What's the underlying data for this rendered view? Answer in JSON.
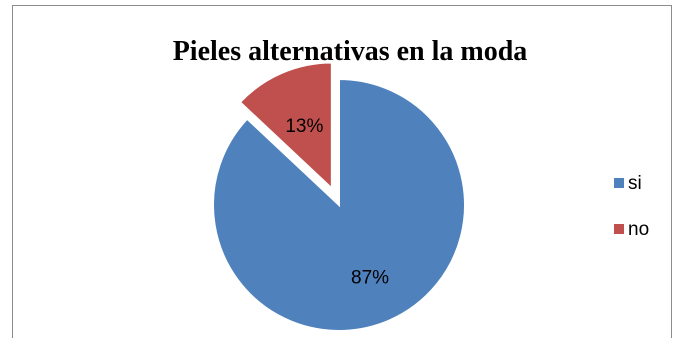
{
  "chart_data": {
    "type": "pie",
    "title": "Pieles alternativas en la moda",
    "categories": [
      "si",
      "no"
    ],
    "values": [
      87,
      13
    ],
    "data_labels": [
      "87%",
      "13%"
    ],
    "colors": [
      "#4F81BD",
      "#C0504D"
    ],
    "exploded": [
      false,
      true
    ],
    "legend": {
      "placement": "right",
      "entries": [
        "si",
        "no"
      ]
    }
  }
}
